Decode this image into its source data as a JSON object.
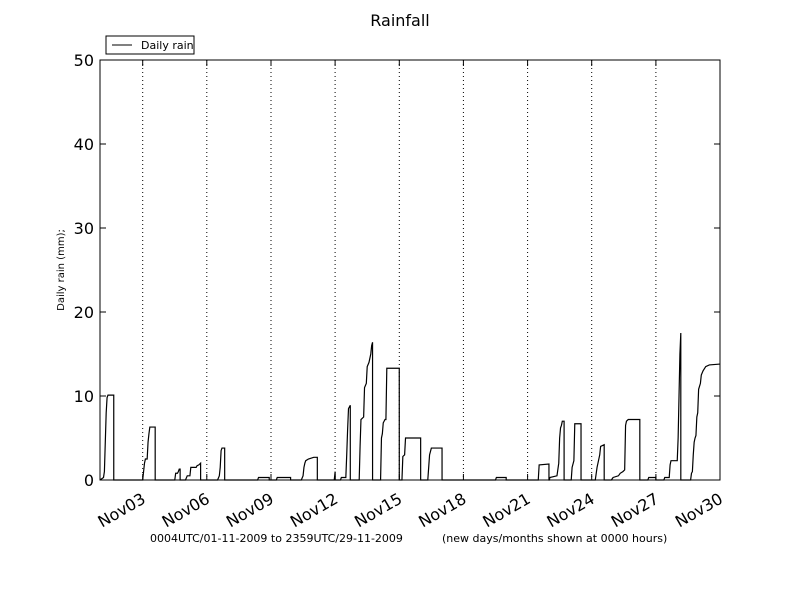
{
  "chart_data": {
    "type": "line",
    "title": "Rainfall",
    "xlabel": "",
    "ylabel": "Daily rain  (mm);",
    "ylim": [
      0,
      50
    ],
    "xlim": [
      "2009-11-01T00:04",
      "2009-11-30T00:00"
    ],
    "yticks": [
      0,
      10,
      20,
      30,
      40,
      50
    ],
    "xticks": [
      "2009-11-03",
      "2009-11-06",
      "2009-11-09",
      "2009-11-12",
      "2009-11-15",
      "2009-11-18",
      "2009-11-21",
      "2009-11-24",
      "2009-11-27",
      "2009-11-30"
    ],
    "xtick_labels": [
      "Nov03",
      "Nov06",
      "Nov09",
      "Nov12",
      "Nov15",
      "Nov18",
      "Nov21",
      "Nov24",
      "Nov27",
      "Nov30"
    ],
    "day_gridlines": [
      "2009-11-03",
      "2009-11-06",
      "2009-11-09",
      "2009-11-12",
      "2009-11-15",
      "2009-11-18",
      "2009-11-21",
      "2009-11-24",
      "2009-11-27"
    ],
    "grid": "vertical dotted at day boundaries",
    "legend": {
      "position": "top-left",
      "entries": [
        "Daily rain"
      ]
    },
    "footer_left": "0004UTC/01-11-2009 to 2359UTC/29-11-2009",
    "footer_right": "(new days/months shown at 0000 hours)",
    "series": [
      {
        "name": "Daily rain",
        "color": "#000000",
        "points": [
          [
            "2009-11-01T00:04",
            0
          ],
          [
            "2009-11-01T04:00",
            0.3
          ],
          [
            "2009-11-01T05:00",
            1.0
          ],
          [
            "2009-11-01T06:00",
            4.5
          ],
          [
            "2009-11-01T07:00",
            8.0
          ],
          [
            "2009-11-01T08:00",
            9.8
          ],
          [
            "2009-11-01T09:00",
            10.1
          ],
          [
            "2009-11-01T12:00",
            10.1
          ],
          [
            "2009-11-01T15:30",
            10.1
          ],
          [
            "2009-11-01T15:31",
            0
          ],
          [
            "2009-11-02T23:59",
            0
          ],
          [
            "2009-11-03T00:00",
            0
          ],
          [
            "2009-11-03T01:00",
            1.0
          ],
          [
            "2009-11-03T02:00",
            2.0
          ],
          [
            "2009-11-03T03:00",
            2.5
          ],
          [
            "2009-11-03T05:00",
            2.5
          ],
          [
            "2009-11-03T06:00",
            4.5
          ],
          [
            "2009-11-03T07:00",
            5.5
          ],
          [
            "2009-11-03T08:00",
            6.3
          ],
          [
            "2009-11-03T14:00",
            6.3
          ],
          [
            "2009-11-03T14:01",
            0
          ],
          [
            "2009-11-04T12:00",
            0
          ],
          [
            "2009-11-04T13:00",
            0.8
          ],
          [
            "2009-11-04T15:00",
            0.8
          ],
          [
            "2009-11-04T16:00",
            1.0
          ],
          [
            "2009-11-04T17:00",
            1.3
          ],
          [
            "2009-11-04T18:00",
            1.3
          ],
          [
            "2009-11-04T18:01",
            0
          ],
          [
            "2009-11-05T00:00",
            0
          ],
          [
            "2009-11-05T02:00",
            0.5
          ],
          [
            "2009-11-05T05:00",
            0.5
          ],
          [
            "2009-11-05T06:00",
            1.5
          ],
          [
            "2009-11-05T12:00",
            1.5
          ],
          [
            "2009-11-05T13:00",
            1.7
          ],
          [
            "2009-11-05T15:00",
            1.8
          ],
          [
            "2009-11-05T17:00",
            2.0
          ],
          [
            "2009-11-05T17:01",
            0
          ],
          [
            "2009-11-06T12:00",
            0
          ],
          [
            "2009-11-06T14:00",
            0.5
          ],
          [
            "2009-11-06T15:00",
            1.5
          ],
          [
            "2009-11-06T16:00",
            3.5
          ],
          [
            "2009-11-06T17:00",
            3.8
          ],
          [
            "2009-11-06T20:00",
            3.8
          ],
          [
            "2009-11-06T20:01",
            0
          ],
          [
            "2009-11-08T09:00",
            0
          ],
          [
            "2009-11-08T10:00",
            0.3
          ],
          [
            "2009-11-08T22:00",
            0.3
          ],
          [
            "2009-11-08T22:01",
            0
          ],
          [
            "2009-11-09T06:00",
            0
          ],
          [
            "2009-11-09T07:00",
            0.3
          ],
          [
            "2009-11-09T22:00",
            0.3
          ],
          [
            "2009-11-09T22:01",
            0
          ],
          [
            "2009-11-10T10:00",
            0
          ],
          [
            "2009-11-10T12:00",
            0.5
          ],
          [
            "2009-11-10T13:00",
            1.5
          ],
          [
            "2009-11-10T14:00",
            2.0
          ],
          [
            "2009-11-10T15:00",
            2.3
          ],
          [
            "2009-11-10T18:00",
            2.5
          ],
          [
            "2009-11-11T00:00",
            2.7
          ],
          [
            "2009-11-11T04:00",
            2.7
          ],
          [
            "2009-11-11T04:01",
            0
          ],
          [
            "2009-11-11T23:00",
            0
          ],
          [
            "2009-11-11T23:30",
            0.5
          ],
          [
            "2009-11-11T23:59",
            1.0
          ],
          [
            "2009-11-12T00:00",
            0
          ],
          [
            "2009-11-12T06:00",
            0
          ],
          [
            "2009-11-12T07:00",
            0.3
          ],
          [
            "2009-11-12T12:00",
            0.3
          ],
          [
            "2009-11-12T13:00",
            3.0
          ],
          [
            "2009-11-12T14:00",
            6.0
          ],
          [
            "2009-11-12T15:00",
            8.5
          ],
          [
            "2009-11-12T17:00",
            8.9
          ],
          [
            "2009-11-12T17:01",
            0
          ],
          [
            "2009-11-13T03:00",
            0
          ],
          [
            "2009-11-13T04:00",
            4.0
          ],
          [
            "2009-11-13T05:00",
            7.2
          ],
          [
            "2009-11-13T08:00",
            7.5
          ],
          [
            "2009-11-13T09:00",
            11.0
          ],
          [
            "2009-11-13T11:00",
            11.5
          ],
          [
            "2009-11-13T12:00",
            13.5
          ],
          [
            "2009-11-13T14:00",
            14.0
          ],
          [
            "2009-11-13T16:00",
            15.0
          ],
          [
            "2009-11-13T17:00",
            16.0
          ],
          [
            "2009-11-13T18:00",
            16.4
          ],
          [
            "2009-11-13T18:01",
            0
          ],
          [
            "2009-11-14T03:00",
            0
          ],
          [
            "2009-11-14T04:00",
            5.0
          ],
          [
            "2009-11-14T05:00",
            5.5
          ],
          [
            "2009-11-14T06:00",
            6.8
          ],
          [
            "2009-11-14T08:00",
            7.2
          ],
          [
            "2009-11-14T09:00",
            7.2
          ],
          [
            "2009-11-14T10:00",
            13.3
          ],
          [
            "2009-11-14T23:59",
            13.3
          ],
          [
            "2009-11-15T00:00",
            0
          ],
          [
            "2009-11-15T03:00",
            0
          ],
          [
            "2009-11-15T04:00",
            2.8
          ],
          [
            "2009-11-15T06:00",
            3.0
          ],
          [
            "2009-11-15T07:00",
            5.0
          ],
          [
            "2009-11-15T23:59",
            5.0
          ],
          [
            "2009-11-16T00:00",
            0
          ],
          [
            "2009-11-16T08:00",
            0
          ],
          [
            "2009-11-16T10:00",
            3.0
          ],
          [
            "2009-11-16T12:00",
            3.8
          ],
          [
            "2009-11-17T00:00",
            3.8
          ],
          [
            "2009-11-17T00:01",
            0
          ],
          [
            "2009-11-19T12:00",
            0
          ],
          [
            "2009-11-19T13:00",
            0.3
          ],
          [
            "2009-11-19T23:59",
            0.3
          ],
          [
            "2009-11-20T00:00",
            0
          ],
          [
            "2009-11-21T12:00",
            0
          ],
          [
            "2009-11-21T13:00",
            1.8
          ],
          [
            "2009-11-22T00:00",
            1.9
          ],
          [
            "2009-11-22T00:01",
            0
          ],
          [
            "2009-11-22T00:30",
            0
          ],
          [
            "2009-11-22T01:00",
            0.3
          ],
          [
            "2009-11-22T09:00",
            0.5
          ],
          [
            "2009-11-22T11:00",
            2.0
          ],
          [
            "2009-11-22T12:00",
            5.0
          ],
          [
            "2009-11-22T13:00",
            6.2
          ],
          [
            "2009-11-22T14:00",
            6.5
          ],
          [
            "2009-11-22T15:00",
            7.0
          ],
          [
            "2009-11-22T17:00",
            7.0
          ],
          [
            "2009-11-22T17:01",
            0
          ],
          [
            "2009-11-23T01:00",
            0
          ],
          [
            "2009-11-23T02:00",
            1.5
          ],
          [
            "2009-11-23T04:00",
            2.3
          ],
          [
            "2009-11-23T05:00",
            6.7
          ],
          [
            "2009-11-23T12:00",
            6.7
          ],
          [
            "2009-11-23T12:01",
            0
          ],
          [
            "2009-11-24T04:00",
            0
          ],
          [
            "2009-11-24T06:00",
            1.5
          ],
          [
            "2009-11-24T08:00",
            2.5
          ],
          [
            "2009-11-24T09:00",
            3.0
          ],
          [
            "2009-11-24T10:00",
            4.0
          ],
          [
            "2009-11-24T14:00",
            4.2
          ],
          [
            "2009-11-24T14:01",
            0
          ],
          [
            "2009-11-24T22:00",
            0
          ],
          [
            "2009-11-25T00:00",
            0.3
          ],
          [
            "2009-11-25T06:00",
            0.5
          ],
          [
            "2009-11-25T08:00",
            0.8
          ],
          [
            "2009-11-25T11:00",
            1.0
          ],
          [
            "2009-11-25T13:00",
            1.2
          ],
          [
            "2009-11-25T14:00",
            6.5
          ],
          [
            "2009-11-25T15:00",
            7.0
          ],
          [
            "2009-11-25T17:00",
            7.2
          ],
          [
            "2009-11-26T06:00",
            7.2
          ],
          [
            "2009-11-26T06:01",
            0
          ],
          [
            "2009-11-26T15:00",
            0
          ],
          [
            "2009-11-26T16:00",
            0.3
          ],
          [
            "2009-11-27T00:00",
            0.3
          ],
          [
            "2009-11-27T00:01",
            0
          ],
          [
            "2009-11-27T09:00",
            0
          ],
          [
            "2009-11-27T10:00",
            0.3
          ],
          [
            "2009-11-27T15:00",
            0.3
          ],
          [
            "2009-11-27T16:00",
            1.8
          ],
          [
            "2009-11-27T17:00",
            2.3
          ],
          [
            "2009-11-28T00:00",
            2.3
          ],
          [
            "2009-11-28T01:00",
            5.0
          ],
          [
            "2009-11-28T02:00",
            10.0
          ],
          [
            "2009-11-28T03:00",
            15.0
          ],
          [
            "2009-11-28T04:00",
            17.5
          ],
          [
            "2009-11-28T04:01",
            0
          ],
          [
            "2009-11-28T15:00",
            0
          ],
          [
            "2009-11-28T16:00",
            0.8
          ],
          [
            "2009-11-28T17:00",
            1.0
          ],
          [
            "2009-11-28T18:00",
            3.0
          ],
          [
            "2009-11-28T19:00",
            4.5
          ],
          [
            "2009-11-28T20:00",
            5.0
          ],
          [
            "2009-11-28T21:00",
            5.3
          ],
          [
            "2009-11-28T22:00",
            7.5
          ],
          [
            "2009-11-28T23:00",
            8.0
          ],
          [
            "2009-11-29T00:00",
            10.8
          ],
          [
            "2009-11-29T02:00",
            11.5
          ],
          [
            "2009-11-29T03:00",
            12.5
          ],
          [
            "2009-11-29T05:00",
            13.0
          ],
          [
            "2009-11-29T08:00",
            13.5
          ],
          [
            "2009-11-29T12:00",
            13.7
          ],
          [
            "2009-11-30T00:00",
            13.8
          ]
        ]
      }
    ]
  }
}
